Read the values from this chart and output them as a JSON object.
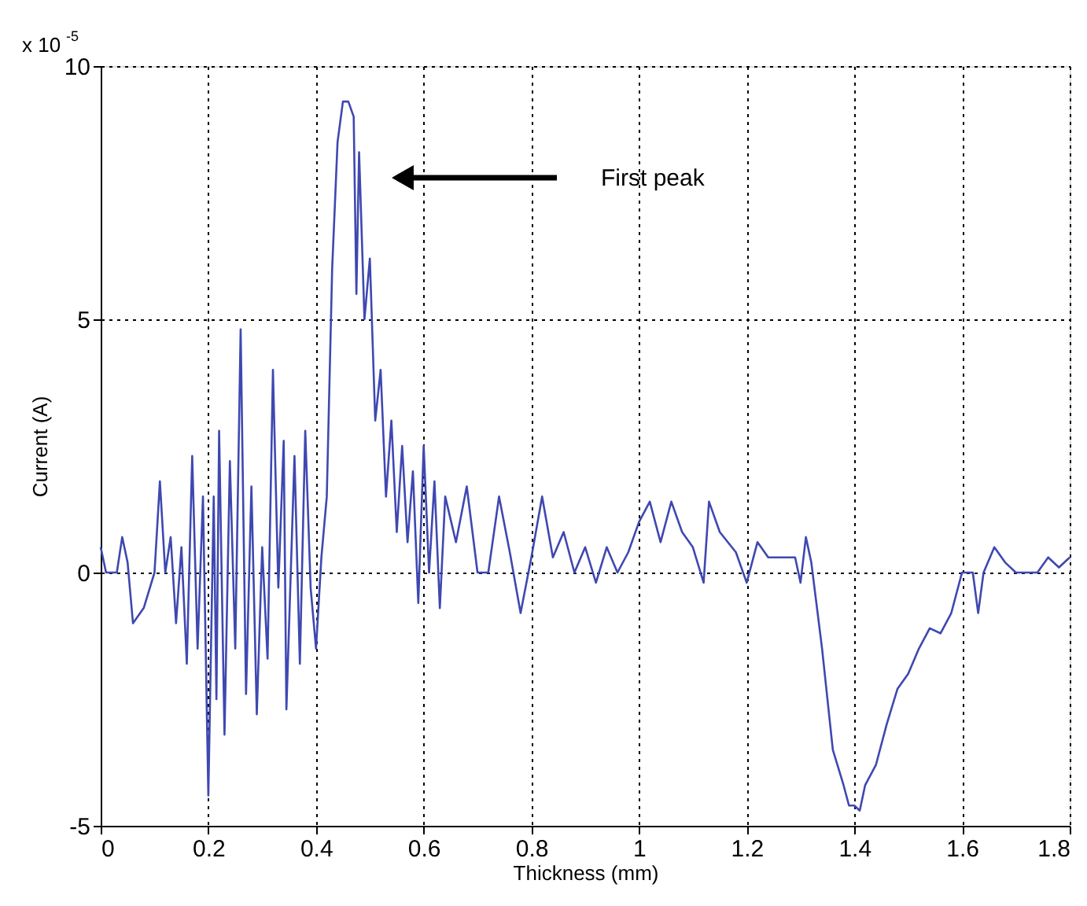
{
  "chart_data": {
    "type": "line",
    "xlabel": "Thickness (mm)",
    "ylabel": "Current (A)",
    "x": [
      0,
      0.01,
      0.03,
      0.04,
      0.05,
      0.06,
      0.08,
      0.1,
      0.11,
      0.12,
      0.13,
      0.14,
      0.15,
      0.16,
      0.17,
      0.18,
      0.19,
      0.2,
      0.21,
      0.215,
      0.22,
      0.23,
      0.24,
      0.25,
      0.26,
      0.27,
      0.28,
      0.29,
      0.3,
      0.31,
      0.32,
      0.33,
      0.34,
      0.345,
      0.36,
      0.37,
      0.38,
      0.39,
      0.4,
      0.41,
      0.42,
      0.43,
      0.44,
      0.45,
      0.46,
      0.47,
      0.475,
      0.48,
      0.49,
      0.5,
      0.51,
      0.52,
      0.53,
      0.54,
      0.55,
      0.56,
      0.57,
      0.58,
      0.59,
      0.6,
      0.61,
      0.62,
      0.63,
      0.64,
      0.66,
      0.68,
      0.7,
      0.72,
      0.74,
      0.76,
      0.78,
      0.8,
      0.82,
      0.84,
      0.86,
      0.88,
      0.9,
      0.92,
      0.94,
      0.96,
      0.98,
      1.0,
      1.02,
      1.04,
      1.06,
      1.08,
      1.1,
      1.12,
      1.13,
      1.15,
      1.18,
      1.2,
      1.22,
      1.24,
      1.26,
      1.29,
      1.3,
      1.31,
      1.32,
      1.34,
      1.36,
      1.38,
      1.39,
      1.4,
      1.41,
      1.42,
      1.44,
      1.46,
      1.48,
      1.5,
      1.52,
      1.54,
      1.56,
      1.58,
      1.6,
      1.62,
      1.63,
      1.64,
      1.66,
      1.68,
      1.7,
      1.74,
      1.76,
      1.78,
      1.8
    ],
    "series": [
      {
        "color": "#3f48b0",
        "values": [
          0.5,
          0,
          0,
          0.7,
          0.2,
          -1,
          -0.7,
          0,
          1.8,
          0,
          0.7,
          -1,
          0.5,
          -1.8,
          2.3,
          -1.5,
          1.5,
          -4.4,
          1.5,
          -2.5,
          2.8,
          -3.2,
          2.2,
          -1.5,
          4.8,
          -2.4,
          1.7,
          -2.8,
          0.5,
          -1.7,
          4,
          -0.3,
          2.6,
          -2.7,
          2.3,
          -1.8,
          2.8,
          -0.3,
          -1.5,
          0.3,
          1.5,
          6,
          8.5,
          9.3,
          9.3,
          9,
          5.5,
          8.3,
          5,
          6.2,
          3,
          4,
          1.5,
          3,
          0.8,
          2.5,
          0.6,
          2,
          -0.6,
          2.5,
          0,
          1.8,
          -0.7,
          1.5,
          0.6,
          1.7,
          0,
          0,
          1.5,
          0.4,
          -0.8,
          0.3,
          1.5,
          0.3,
          0.8,
          0,
          0.5,
          -0.2,
          0.5,
          0,
          0.4,
          1,
          1.4,
          0.6,
          1.4,
          0.8,
          0.5,
          -0.2,
          1.4,
          0.8,
          0.4,
          -0.2,
          0.6,
          0.3,
          0.3,
          0.3,
          -0.2,
          0.7,
          0.2,
          -1.5,
          -3.5,
          -4.2,
          -4.6,
          -4.6,
          -4.7,
          -4.2,
          -3.8,
          -3,
          -2.3,
          -2,
          -1.5,
          -1.1,
          -1.2,
          -0.8,
          0,
          0,
          -0.8,
          0,
          0.5,
          0.2,
          0,
          0,
          0.3,
          0.1,
          0.3
        ]
      }
    ],
    "xlim": [
      0,
      1.8
    ],
    "xticks": [
      0,
      0.2,
      0.4,
      0.6,
      0.8,
      1,
      1.2,
      1.4,
      1.6,
      1.8
    ],
    "ylim": [
      -5,
      10
    ],
    "yticks": [
      -5,
      0,
      5,
      10
    ],
    "grid": true,
    "marker": "none",
    "line_style": "solid",
    "annotations": [
      "x 10$^{-5}$",
      "First peak"
    ]
  }
}
